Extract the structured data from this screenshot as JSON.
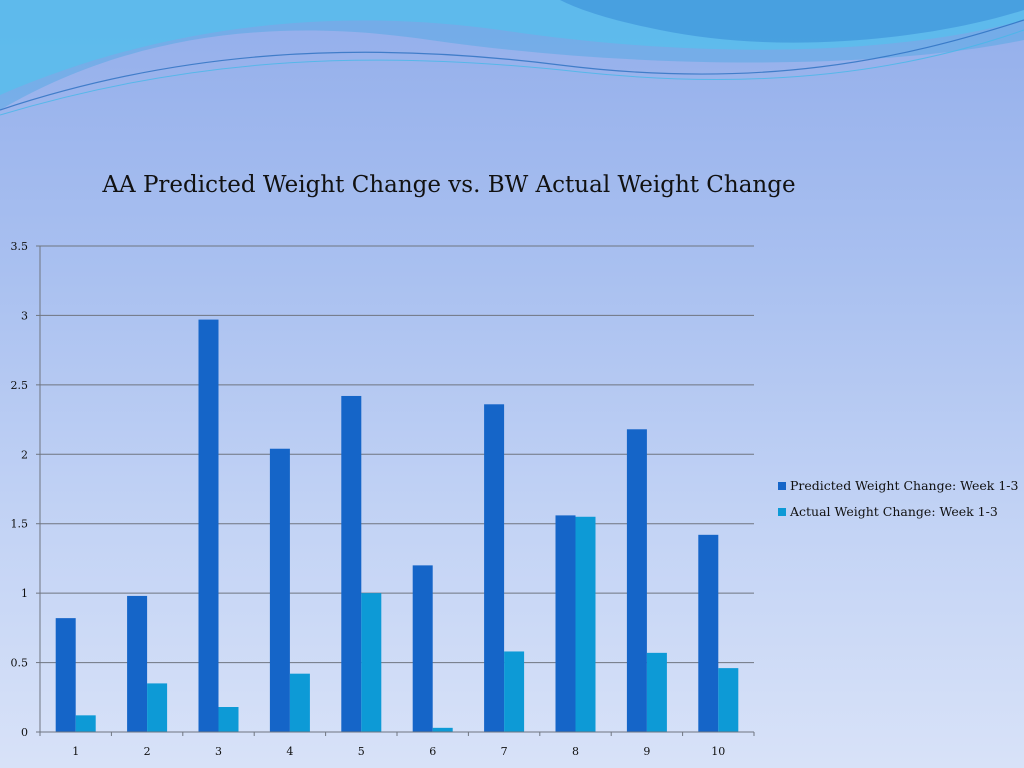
{
  "colors": {
    "predicted": "#1565c8",
    "actual": "#0d9ad6",
    "grid": "#6f7580",
    "axis": "#6f7580",
    "wave_dark": "#3a8fd8",
    "wave_light": "#4cc6ee"
  },
  "chart_data": {
    "type": "bar",
    "title": "AA Predicted Weight Change vs. BW Actual Weight Change",
    "categories": [
      "1",
      "2",
      "3",
      "4",
      "5",
      "6",
      "7",
      "8",
      "9",
      "10"
    ],
    "series": [
      {
        "name": "Predicted Weight Change: Week 1-3",
        "values": [
          0.82,
          0.98,
          2.97,
          2.04,
          2.42,
          1.2,
          2.36,
          1.56,
          2.18,
          1.42
        ]
      },
      {
        "name": "Actual Weight Change: Week 1-3",
        "values": [
          0.12,
          0.35,
          0.18,
          0.42,
          1.0,
          0.03,
          0.58,
          1.55,
          0.57,
          0.46
        ]
      }
    ],
    "yticks": [
      "0",
      "0.5",
      "1",
      "1.5",
      "2",
      "2.5",
      "3",
      "3.5"
    ],
    "ylim": [
      0,
      3.5
    ],
    "grid": true,
    "legend_position": "right"
  }
}
